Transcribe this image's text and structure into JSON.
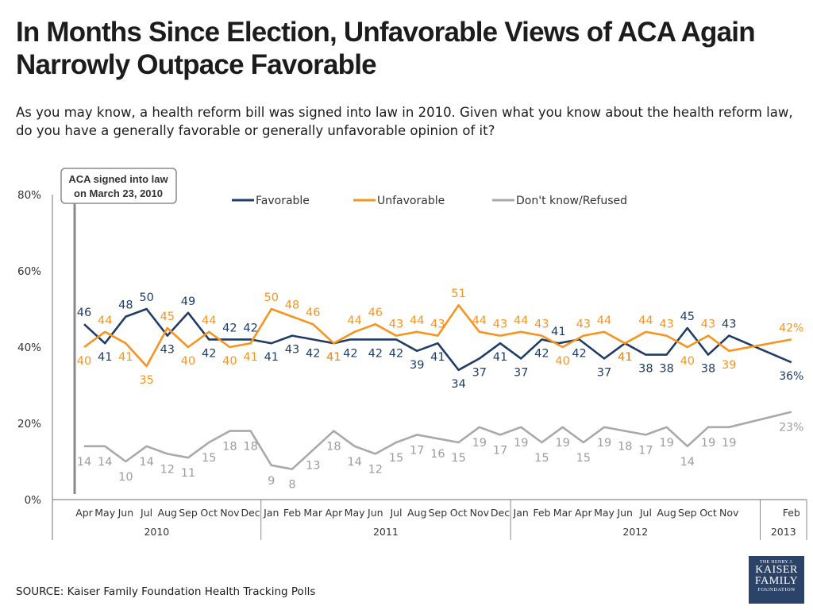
{
  "title": "In Months Since Election, Unfavorable Views of ACA Again Narrowly Outpace Favorable",
  "subtitle": "As you may know, a health reform bill was signed into law in 2010. Given what you know about the health reform law, do you have a generally favorable or generally unfavorable opinion of it?",
  "source": "SOURCE: Kaiser Family Foundation Health Tracking Polls",
  "logo": {
    "line1": "THE HENRY J.",
    "line2a": "KAISER",
    "line2b": "FAMILY",
    "line3": "FOUNDATION"
  },
  "colors": {
    "favorable": "#1f3d66",
    "unfavorable": "#f7941d",
    "dontknow": "#a7a9ac",
    "axis": "#8a8a8a",
    "text": "#333333"
  },
  "chart_data": {
    "type": "line",
    "ylim": [
      0,
      80
    ],
    "y_ticks": [
      "0%",
      "20%",
      "40%",
      "60%",
      "80%"
    ],
    "annotation": {
      "line1": "ACA signed into law",
      "line2": "on March 23, 2010"
    },
    "x": [
      "Apr",
      "May",
      "Jun",
      "Jul",
      "Aug",
      "Sep",
      "Oct",
      "Nov",
      "Dec",
      "Jan",
      "Feb",
      "Mar",
      "Apr",
      "May",
      "Jun",
      "Jul",
      "Aug",
      "Sep",
      "Oct",
      "Nov",
      "Dec",
      "Jan",
      "Feb",
      "Mar",
      "Apr",
      "May",
      "Jun",
      "Jul",
      "Aug",
      "Sep",
      "Oct",
      "Nov",
      "Feb"
    ],
    "x_labels": [
      {
        "label": "Apr",
        "x": 0
      },
      {
        "label": "May",
        "x": 1
      },
      {
        "label": "Jun",
        "x": 2
      },
      {
        "label": "Jul",
        "x": 3
      },
      {
        "label": "Aug",
        "x": 4
      },
      {
        "label": "Sep",
        "x": 5
      },
      {
        "label": "Oct",
        "x": 6
      },
      {
        "label": "Nov",
        "x": 7
      },
      {
        "label": "Dec",
        "x": 8
      },
      {
        "label": "Jan",
        "x": 9
      },
      {
        "label": "Feb",
        "x": 10
      },
      {
        "label": "Mar",
        "x": 11
      },
      {
        "label": "Apr",
        "x": 12
      },
      {
        "label": "May",
        "x": 13
      },
      {
        "label": "Jun",
        "x": 14
      },
      {
        "label": "Jul",
        "x": 15
      },
      {
        "label": "Aug",
        "x": 16
      },
      {
        "label": "Sep",
        "x": 17
      },
      {
        "label": "Oct",
        "x": 18
      },
      {
        "label": "Nov",
        "x": 19
      },
      {
        "label": "Dec",
        "x": 20
      },
      {
        "label": "Jan",
        "x": 21
      },
      {
        "label": "Feb",
        "x": 22
      },
      {
        "label": "Mar",
        "x": 23
      },
      {
        "label": "Apr",
        "x": 24
      },
      {
        "label": "May",
        "x": 25
      },
      {
        "label": "Jun",
        "x": 26
      },
      {
        "label": "Jul",
        "x": 27
      },
      {
        "label": "Aug",
        "x": 28
      },
      {
        "label": "Sep",
        "x": 29
      },
      {
        "label": "Oct",
        "x": 30
      },
      {
        "label": "Nov",
        "x": 31
      },
      {
        "label": "Feb",
        "x": 34
      }
    ],
    "years": [
      {
        "label": "2010",
        "from": 0,
        "to": 8
      },
      {
        "label": "2011",
        "from": 9,
        "to": 20
      },
      {
        "label": "2012",
        "from": 21,
        "to": 31
      },
      {
        "label": "2013",
        "from": 34,
        "to": 34
      }
    ],
    "series": [
      {
        "name": "Favorable",
        "points": [
          [
            0,
            46
          ],
          [
            1,
            41
          ],
          [
            2,
            48
          ],
          [
            3,
            50
          ],
          [
            4,
            43
          ],
          [
            5,
            49
          ],
          [
            6,
            42
          ],
          [
            7,
            42
          ],
          [
            8,
            42
          ],
          [
            9,
            41
          ],
          [
            10,
            43
          ],
          [
            11,
            42
          ],
          [
            12,
            41
          ],
          [
            12.8,
            42
          ],
          [
            14,
            42
          ],
          [
            15,
            42
          ],
          [
            16,
            39
          ],
          [
            17,
            41
          ],
          [
            18,
            34
          ],
          [
            19,
            37
          ],
          [
            20,
            41
          ],
          [
            21,
            37
          ],
          [
            22,
            42
          ],
          [
            22.8,
            41
          ],
          [
            23.8,
            42
          ],
          [
            25,
            37
          ],
          [
            26,
            41
          ],
          [
            27,
            38
          ],
          [
            28,
            38
          ],
          [
            29,
            45
          ],
          [
            30,
            38
          ],
          [
            31,
            43
          ],
          [
            34,
            36
          ]
        ],
        "labels": [
          "46",
          "41",
          "48",
          "50",
          "43",
          "49",
          "42",
          "42",
          "42",
          "41",
          "43",
          "42",
          "41",
          "42",
          "42",
          "42",
          "39",
          "41",
          "34",
          "37",
          "41",
          "37",
          "42",
          "41",
          "42",
          "37",
          "41",
          "38",
          "38",
          "45",
          "38",
          "43",
          "36%"
        ]
      },
      {
        "name": "Unfavorable",
        "points": [
          [
            0,
            40
          ],
          [
            1,
            44
          ],
          [
            2,
            41
          ],
          [
            3,
            35
          ],
          [
            4,
            45
          ],
          [
            5,
            40
          ],
          [
            6,
            44
          ],
          [
            7,
            40
          ],
          [
            8,
            41
          ],
          [
            9,
            50
          ],
          [
            10,
            48
          ],
          [
            11,
            46
          ],
          [
            12,
            41
          ],
          [
            13,
            44
          ],
          [
            14,
            46
          ],
          [
            15,
            43
          ],
          [
            16,
            44
          ],
          [
            17,
            43
          ],
          [
            18,
            51
          ],
          [
            19,
            44
          ],
          [
            20,
            43
          ],
          [
            21,
            44
          ],
          [
            22,
            43
          ],
          [
            23,
            40
          ],
          [
            24,
            43
          ],
          [
            25,
            44
          ],
          [
            26,
            41
          ],
          [
            27,
            44
          ],
          [
            28,
            43
          ],
          [
            29,
            40
          ],
          [
            30,
            43
          ],
          [
            31,
            39
          ],
          [
            34,
            42
          ]
        ],
        "labels": [
          "40",
          "44",
          "41",
          "35",
          "45",
          "40",
          "44",
          "40",
          "41",
          "50",
          "48",
          "46",
          "41",
          "44",
          "46",
          "43",
          "44",
          "43",
          "51",
          "44",
          "43",
          "44",
          "43",
          "40",
          "43",
          "44",
          "41",
          "44",
          "43",
          "40",
          "43",
          "39",
          "42%"
        ]
      },
      {
        "name": "Don't know/Refused",
        "points": [
          [
            0,
            14
          ],
          [
            1,
            14
          ],
          [
            2,
            10
          ],
          [
            3,
            14
          ],
          [
            4,
            12
          ],
          [
            5,
            11
          ],
          [
            6,
            15
          ],
          [
            7,
            18
          ],
          [
            8,
            18
          ],
          [
            9,
            9
          ],
          [
            10,
            8
          ],
          [
            11,
            13
          ],
          [
            12,
            18
          ],
          [
            13,
            14
          ],
          [
            14,
            12
          ],
          [
            15,
            15
          ],
          [
            16,
            17
          ],
          [
            17,
            16
          ],
          [
            18,
            15
          ],
          [
            19,
            19
          ],
          [
            20,
            17
          ],
          [
            21,
            19
          ],
          [
            22,
            15
          ],
          [
            23,
            19
          ],
          [
            24,
            15
          ],
          [
            25,
            19
          ],
          [
            26,
            18
          ],
          [
            27,
            17
          ],
          [
            28,
            19
          ],
          [
            29,
            14
          ],
          [
            30,
            19
          ],
          [
            31,
            19
          ],
          [
            34,
            23
          ]
        ],
        "labels": [
          "14",
          "14",
          "10",
          "14",
          "12",
          "11",
          "15",
          "18",
          "18",
          "9",
          "8",
          "13",
          "18",
          "14",
          "12",
          "15",
          "17",
          "16",
          "15",
          "19",
          "17",
          "19",
          "15",
          "19",
          "15",
          "19",
          "18",
          "17",
          "19",
          "14",
          "19",
          "19",
          "23%"
        ]
      }
    ]
  }
}
